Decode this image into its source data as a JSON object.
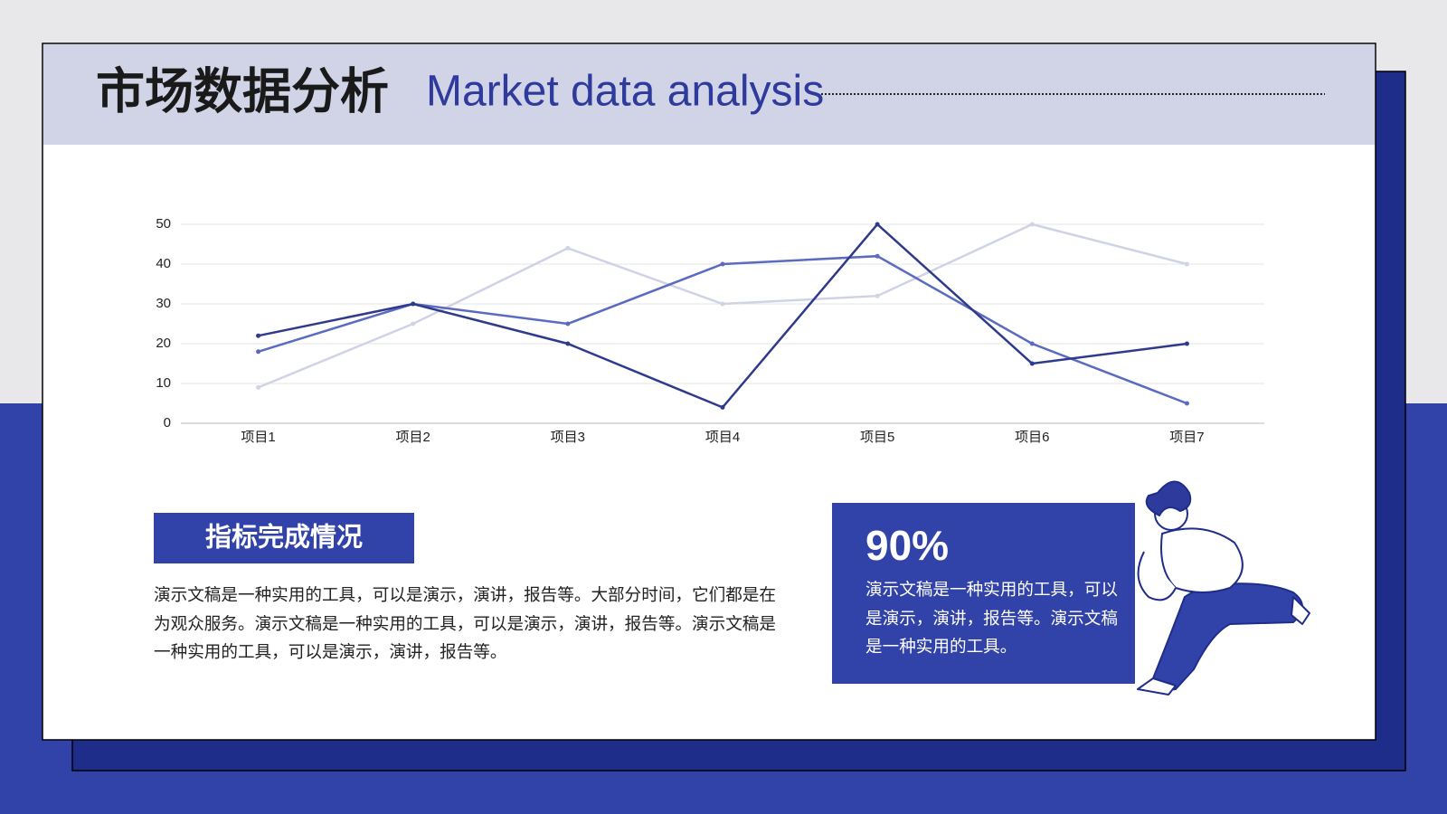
{
  "header": {
    "title": "市场数据分析",
    "subtitle": "Market data analysis"
  },
  "chart_data": {
    "type": "line",
    "categories": [
      "项目1",
      "项目2",
      "项目3",
      "项目4",
      "项目5",
      "项目6",
      "项目7"
    ],
    "series": [
      {
        "color": "#d0d3e6",
        "values": [
          9,
          25,
          44,
          30,
          32,
          50,
          40
        ]
      },
      {
        "color": "#5a6bc0",
        "values": [
          18,
          30,
          25,
          40,
          42,
          20,
          5
        ]
      },
      {
        "color": "#2e3a8c",
        "values": [
          22,
          30,
          20,
          4,
          50,
          15,
          20
        ]
      }
    ],
    "ylim": [
      0,
      50
    ],
    "yticks": [
      0,
      10,
      20,
      30,
      40,
      50
    ],
    "grid": true
  },
  "section": {
    "heading": "指标完成情况",
    "text": "演示文稿是一种实用的工具，可以是演示，演讲，报告等。大部分时间，它们都是在为观众服务。演示文稿是一种实用的工具，可以是演示，演讲，报告等。演示文稿是一种实用的工具，可以是演示，演讲，报告等。"
  },
  "callout": {
    "value": "90%",
    "text": "演示文稿是一种实用的工具，可以是演示，演讲，报告等。演示文稿是一种实用的工具。"
  }
}
